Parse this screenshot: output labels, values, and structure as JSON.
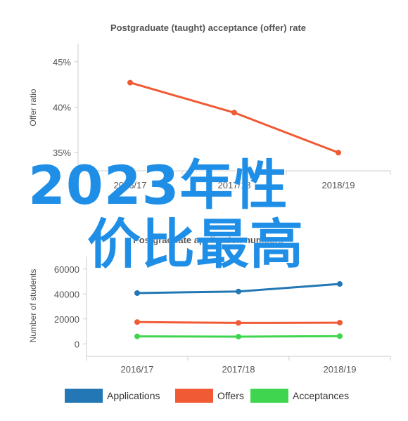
{
  "chart_data": [
    {
      "type": "line",
      "title": "Postgraduate (taught) acceptance (offer) rate",
      "xlabel": "",
      "ylabel": "Offer ratio",
      "categories": [
        "2016/17",
        "2017/18",
        "2018/19"
      ],
      "y_ticks": [
        "35%",
        "40%",
        "45%"
      ],
      "ylim": [
        0.33,
        0.47
      ],
      "grid": false,
      "series": [
        {
          "values": [
            0.427,
            0.394,
            0.35
          ],
          "color": "#f05a35"
        }
      ]
    },
    {
      "type": "line",
      "title": "Postgraduate application numbers",
      "xlabel": "",
      "ylabel": "Number of students",
      "categories": [
        "2016/17",
        "2017/18",
        "2018/19"
      ],
      "y_ticks": [
        "0",
        "20000",
        "40000",
        "60000"
      ],
      "ylim": [
        -10000,
        70000
      ],
      "grid": false,
      "legend_position": "bottom",
      "series": [
        {
          "name": "Applications",
          "values": [
            40700,
            42000,
            48000
          ],
          "color": "#2277b4"
        },
        {
          "name": "Offers",
          "values": [
            17500,
            16800,
            17000
          ],
          "color": "#f05a35"
        },
        {
          "name": "Acceptances",
          "values": [
            6000,
            5800,
            6200
          ],
          "color": "#3fd54f"
        }
      ]
    }
  ],
  "overlay": {
    "line1": "2023年性",
    "line2": "价比最高"
  }
}
